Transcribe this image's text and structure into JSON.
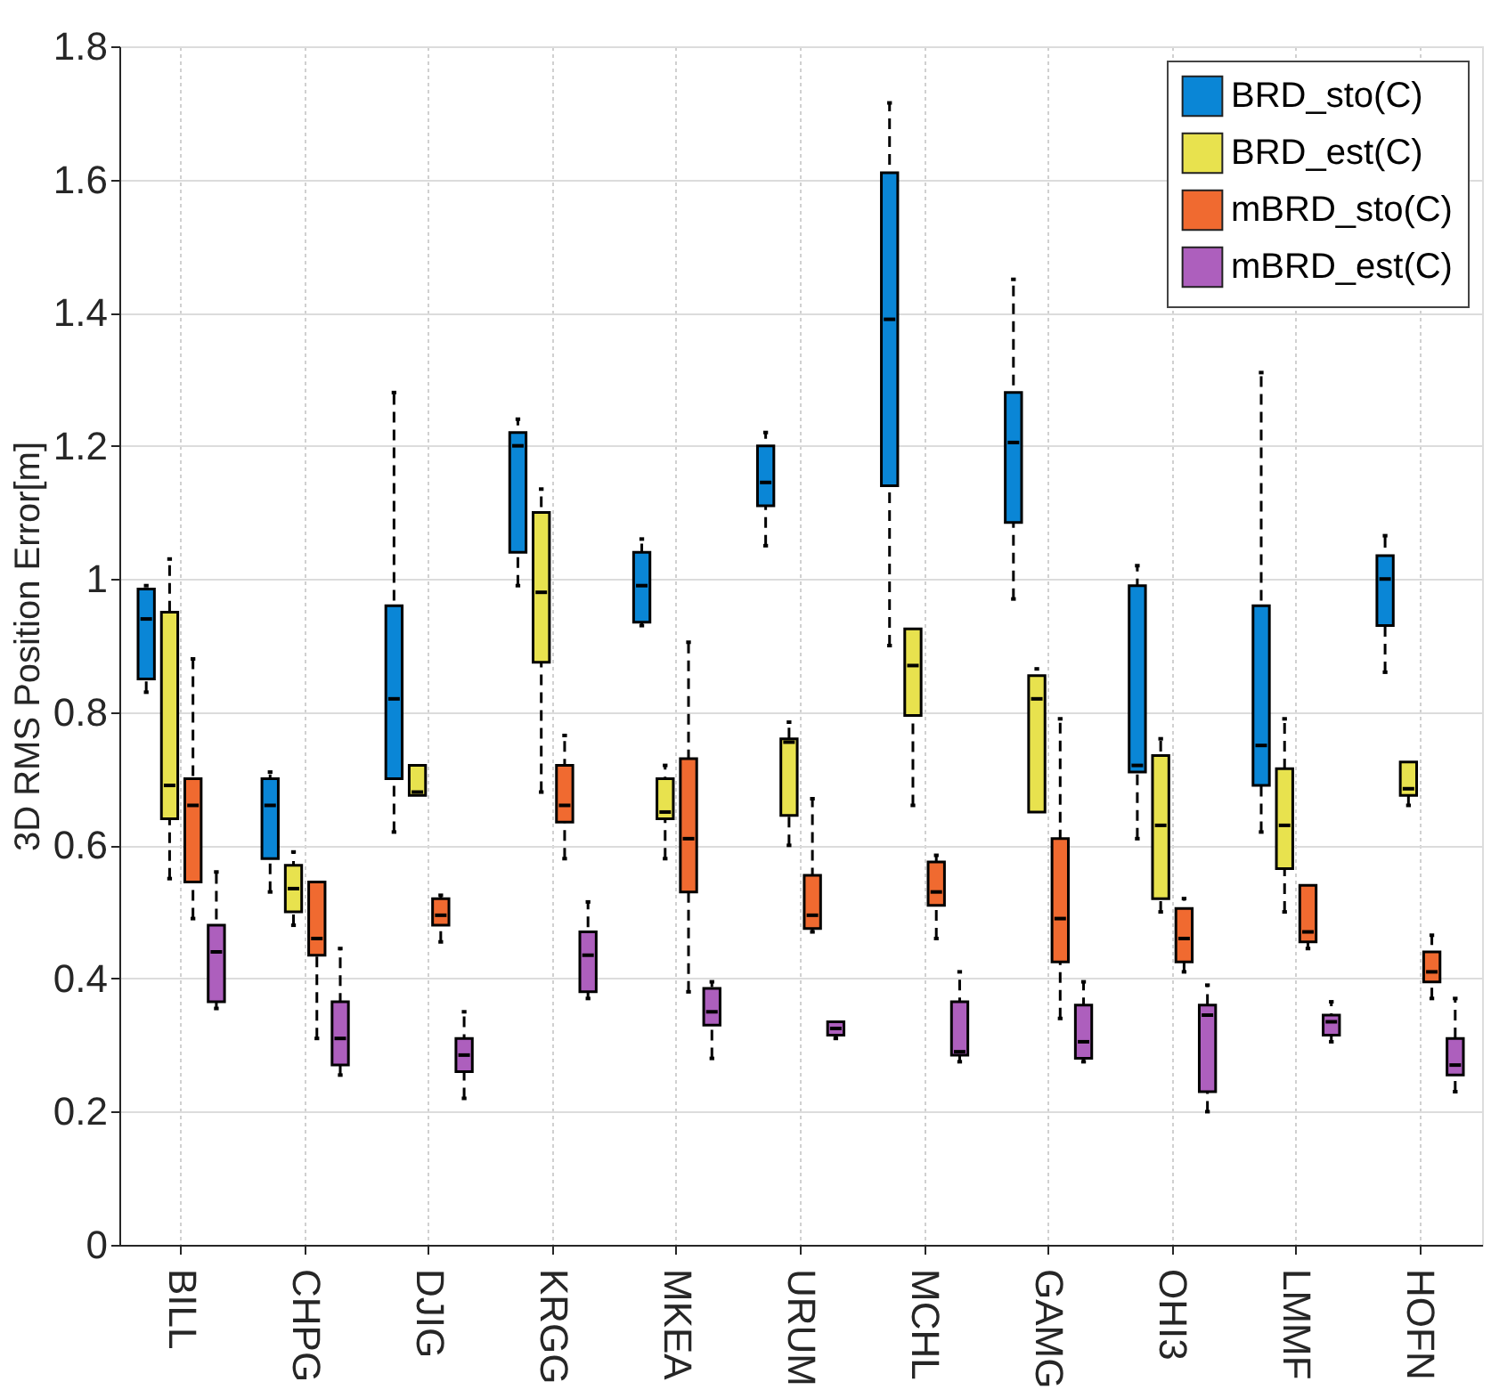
{
  "chart_data": {
    "type": "box",
    "ylabel": "3D RMS Position Error[m]",
    "categories": [
      "BILL",
      "CHPG",
      "DJIG",
      "KRGG",
      "MKEA",
      "URUM",
      "MCHL",
      "GAMG",
      "OHI3",
      "LMMF",
      "HOFN"
    ],
    "ylim": [
      0,
      1.8
    ],
    "yticks": [
      0,
      0.2,
      0.4,
      0.6,
      0.8,
      1,
      1.2,
      1.4,
      1.6,
      1.8
    ],
    "grid": true,
    "legend": "top right",
    "series": [
      {
        "name": "BRD_sto(C)",
        "color": "#0a86d6",
        "boxes": [
          {
            "low": 0.83,
            "q1": 0.85,
            "median": 0.94,
            "q3": 0.985,
            "high": 0.99
          },
          {
            "low": 0.53,
            "q1": 0.58,
            "median": 0.66,
            "q3": 0.7,
            "high": 0.71
          },
          {
            "low": 0.62,
            "q1": 0.7,
            "median": 0.82,
            "q3": 0.96,
            "high": 1.28
          },
          {
            "low": 0.99,
            "q1": 1.04,
            "median": 1.2,
            "q3": 1.22,
            "high": 1.24
          },
          {
            "low": 0.93,
            "q1": 0.935,
            "median": 0.99,
            "q3": 1.04,
            "high": 1.06
          },
          {
            "low": 1.05,
            "q1": 1.11,
            "median": 1.145,
            "q3": 1.2,
            "high": 1.22
          },
          {
            "low": 0.9,
            "q1": 1.14,
            "median": 1.39,
            "q3": 1.61,
            "high": 1.715
          },
          {
            "low": 0.97,
            "q1": 1.085,
            "median": 1.205,
            "q3": 1.28,
            "high": 1.45
          },
          {
            "low": 0.61,
            "q1": 0.71,
            "median": 0.72,
            "q3": 0.99,
            "high": 1.02
          },
          {
            "low": 0.62,
            "q1": 0.69,
            "median": 0.75,
            "q3": 0.96,
            "high": 1.31
          },
          {
            "low": 0.86,
            "q1": 0.93,
            "median": 1.0,
            "q3": 1.035,
            "high": 1.065
          }
        ]
      },
      {
        "name": "BRD_est(C)",
        "color": "#e8e24e",
        "boxes": [
          {
            "low": 0.55,
            "q1": 0.64,
            "median": 0.69,
            "q3": 0.95,
            "high": 1.03
          },
          {
            "low": 0.48,
            "q1": 0.5,
            "median": 0.535,
            "q3": 0.57,
            "high": 0.59
          },
          {
            "low": 0.675,
            "q1": 0.675,
            "median": 0.68,
            "q3": 0.72,
            "high": 0.72
          },
          {
            "low": 0.68,
            "q1": 0.875,
            "median": 0.98,
            "q3": 1.1,
            "high": 1.135
          },
          {
            "low": 0.58,
            "q1": 0.64,
            "median": 0.65,
            "q3": 0.7,
            "high": 0.72
          },
          {
            "low": 0.6,
            "q1": 0.645,
            "median": 0.755,
            "q3": 0.76,
            "high": 0.785
          },
          {
            "low": 0.66,
            "q1": 0.795,
            "median": 0.87,
            "q3": 0.925,
            "high": 0.925
          },
          {
            "low": 0.65,
            "q1": 0.65,
            "median": 0.82,
            "q3": 0.855,
            "high": 0.865
          },
          {
            "low": 0.5,
            "q1": 0.52,
            "median": 0.63,
            "q3": 0.735,
            "high": 0.76
          },
          {
            "low": 0.5,
            "q1": 0.565,
            "median": 0.63,
            "q3": 0.715,
            "high": 0.79
          },
          {
            "low": 0.66,
            "q1": 0.675,
            "median": 0.685,
            "q3": 0.725,
            "high": 0.725
          }
        ]
      },
      {
        "name": "mBRD_sto(C)",
        "color": "#f06a30",
        "boxes": [
          {
            "low": 0.49,
            "q1": 0.545,
            "median": 0.66,
            "q3": 0.7,
            "high": 0.88
          },
          {
            "low": 0.31,
            "q1": 0.435,
            "median": 0.46,
            "q3": 0.545,
            "high": 0.545
          },
          {
            "low": 0.455,
            "q1": 0.48,
            "median": 0.495,
            "q3": 0.52,
            "high": 0.525
          },
          {
            "low": 0.58,
            "q1": 0.635,
            "median": 0.66,
            "q3": 0.72,
            "high": 0.765
          },
          {
            "low": 0.38,
            "q1": 0.53,
            "median": 0.61,
            "q3": 0.73,
            "high": 0.905
          },
          {
            "low": 0.47,
            "q1": 0.475,
            "median": 0.495,
            "q3": 0.555,
            "high": 0.67
          },
          {
            "low": 0.46,
            "q1": 0.51,
            "median": 0.53,
            "q3": 0.575,
            "high": 0.585
          },
          {
            "low": 0.34,
            "q1": 0.425,
            "median": 0.49,
            "q3": 0.61,
            "high": 0.79
          },
          {
            "low": 0.41,
            "q1": 0.425,
            "median": 0.46,
            "q3": 0.505,
            "high": 0.52
          },
          {
            "low": 0.445,
            "q1": 0.455,
            "median": 0.47,
            "q3": 0.54,
            "high": 0.54
          },
          {
            "low": 0.37,
            "q1": 0.395,
            "median": 0.41,
            "q3": 0.44,
            "high": 0.465
          }
        ]
      },
      {
        "name": "mBRD_est(C)",
        "color": "#ad5fbd",
        "boxes": [
          {
            "low": 0.355,
            "q1": 0.365,
            "median": 0.44,
            "q3": 0.48,
            "high": 0.56
          },
          {
            "low": 0.255,
            "q1": 0.27,
            "median": 0.31,
            "q3": 0.365,
            "high": 0.445
          },
          {
            "low": 0.22,
            "q1": 0.26,
            "median": 0.285,
            "q3": 0.31,
            "high": 0.35
          },
          {
            "low": 0.37,
            "q1": 0.38,
            "median": 0.435,
            "q3": 0.47,
            "high": 0.515
          },
          {
            "low": 0.28,
            "q1": 0.33,
            "median": 0.35,
            "q3": 0.385,
            "high": 0.395
          },
          {
            "low": 0.31,
            "q1": 0.315,
            "median": 0.325,
            "q3": 0.335,
            "high": 0.335
          },
          {
            "low": 0.275,
            "q1": 0.285,
            "median": 0.29,
            "q3": 0.365,
            "high": 0.41
          },
          {
            "low": 0.275,
            "q1": 0.28,
            "median": 0.305,
            "q3": 0.36,
            "high": 0.395
          },
          {
            "low": 0.2,
            "q1": 0.23,
            "median": 0.345,
            "q3": 0.36,
            "high": 0.39
          },
          {
            "low": 0.305,
            "q1": 0.315,
            "median": 0.335,
            "q3": 0.345,
            "high": 0.365
          },
          {
            "low": 0.23,
            "q1": 0.255,
            "median": 0.27,
            "q3": 0.31,
            "high": 0.37
          }
        ]
      }
    ]
  }
}
